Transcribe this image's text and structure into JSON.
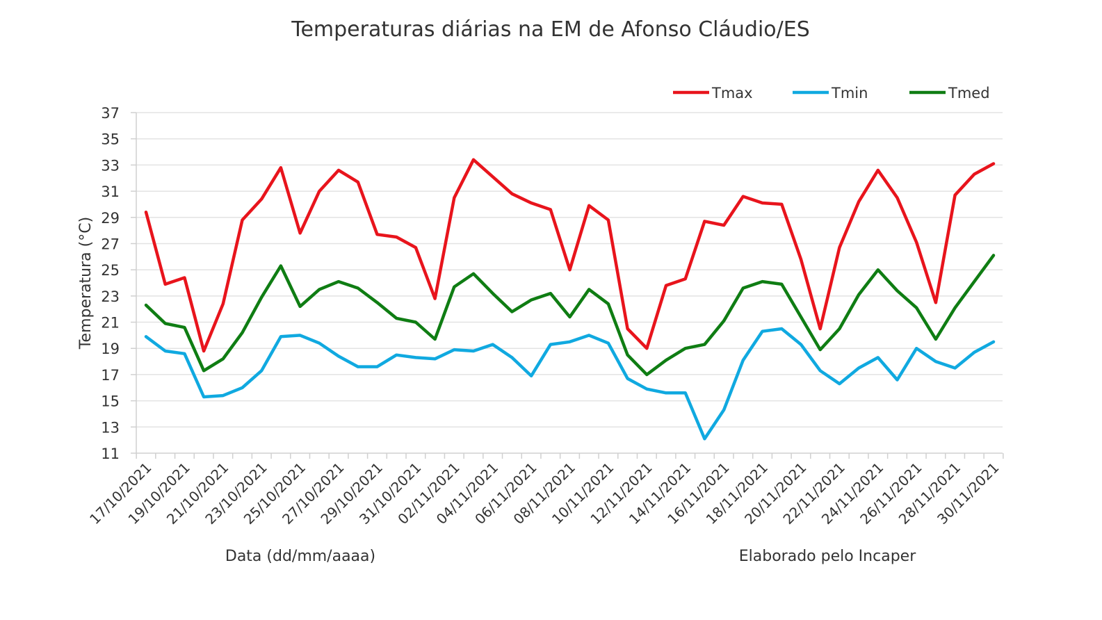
{
  "chart_data": {
    "type": "line",
    "title": "Temperaturas diárias na EM de Afonso Cláudio/ES",
    "xlabel": "Data (dd/mm/aaaa)",
    "ylabel": "Temperatura (°C)",
    "credit": "Elaborado pelo Incaper",
    "ylim": [
      11,
      37
    ],
    "yticks": [
      11,
      13,
      15,
      17,
      19,
      21,
      23,
      25,
      27,
      29,
      31,
      33,
      35,
      37
    ],
    "grid": true,
    "legend_position": "top-right",
    "x": [
      "17/10/2021",
      "18/10/2021",
      "19/10/2021",
      "20/10/2021",
      "21/10/2021",
      "22/10/2021",
      "23/10/2021",
      "24/10/2021",
      "25/10/2021",
      "26/10/2021",
      "27/10/2021",
      "28/10/2021",
      "29/10/2021",
      "30/10/2021",
      "31/10/2021",
      "01/11/2021",
      "02/11/2021",
      "03/11/2021",
      "04/11/2021",
      "05/11/2021",
      "06/11/2021",
      "07/11/2021",
      "08/11/2021",
      "09/11/2021",
      "10/11/2021",
      "11/11/2021",
      "12/11/2021",
      "13/11/2021",
      "14/11/2021",
      "15/11/2021",
      "16/11/2021",
      "17/11/2021",
      "18/11/2021",
      "19/11/2021",
      "20/11/2021",
      "21/11/2021",
      "22/11/2021",
      "23/11/2021",
      "24/11/2021",
      "25/11/2021",
      "26/11/2021",
      "27/11/2021",
      "28/11/2021",
      "29/11/2021",
      "30/11/2021"
    ],
    "xtick_labels": [
      "17/10/2021",
      "19/10/2021",
      "21/10/2021",
      "23/10/2021",
      "25/10/2021",
      "27/10/2021",
      "29/10/2021",
      "31/10/2021",
      "02/11/2021",
      "04/11/2021",
      "06/11/2021",
      "08/11/2021",
      "10/11/2021",
      "12/11/2021",
      "14/11/2021",
      "16/11/2021",
      "18/11/2021",
      "20/11/2021",
      "22/11/2021",
      "24/11/2021",
      "26/11/2021",
      "28/11/2021",
      "30/11/2021"
    ],
    "series": [
      {
        "name": "Tmax",
        "color": "#e8141c",
        "values": [
          29.4,
          23.9,
          24.4,
          18.8,
          22.4,
          28.8,
          30.4,
          32.8,
          27.8,
          31.0,
          32.6,
          31.7,
          27.7,
          27.5,
          26.7,
          22.8,
          30.5,
          33.4,
          32.1,
          30.8,
          30.1,
          29.6,
          25.0,
          29.9,
          28.8,
          20.5,
          19.0,
          23.8,
          24.3,
          28.7,
          28.4,
          30.6,
          30.1,
          30.0,
          25.8,
          20.5,
          26.7,
          30.2,
          32.6,
          30.5,
          27.1,
          22.5,
          30.7,
          32.3,
          33.1
        ]
      },
      {
        "name": "Tmin",
        "color": "#10a9e0",
        "values": [
          19.9,
          18.8,
          18.6,
          15.3,
          15.4,
          16.0,
          17.3,
          19.9,
          20.0,
          19.4,
          18.4,
          17.6,
          17.6,
          18.5,
          18.3,
          18.2,
          18.9,
          18.8,
          19.3,
          18.3,
          16.9,
          19.3,
          19.5,
          20.0,
          19.4,
          16.7,
          15.9,
          15.6,
          15.6,
          12.1,
          14.3,
          18.1,
          20.3,
          20.5,
          19.3,
          17.3,
          16.3,
          17.5,
          18.3,
          16.6,
          19.0,
          18.0,
          17.5,
          18.7,
          19.5
        ]
      },
      {
        "name": "Tmed",
        "color": "#0f7d13",
        "values": [
          22.3,
          20.9,
          20.6,
          17.3,
          18.2,
          20.2,
          22.9,
          25.3,
          22.2,
          23.5,
          24.1,
          23.6,
          22.5,
          21.3,
          21.0,
          19.7,
          23.7,
          24.7,
          23.2,
          21.8,
          22.7,
          23.2,
          21.4,
          23.5,
          22.4,
          18.5,
          17.0,
          18.1,
          19.0,
          19.3,
          21.1,
          23.6,
          24.1,
          23.9,
          21.4,
          18.9,
          20.5,
          23.1,
          25.0,
          23.4,
          22.1,
          19.7,
          22.1,
          24.1,
          26.1
        ]
      }
    ]
  }
}
